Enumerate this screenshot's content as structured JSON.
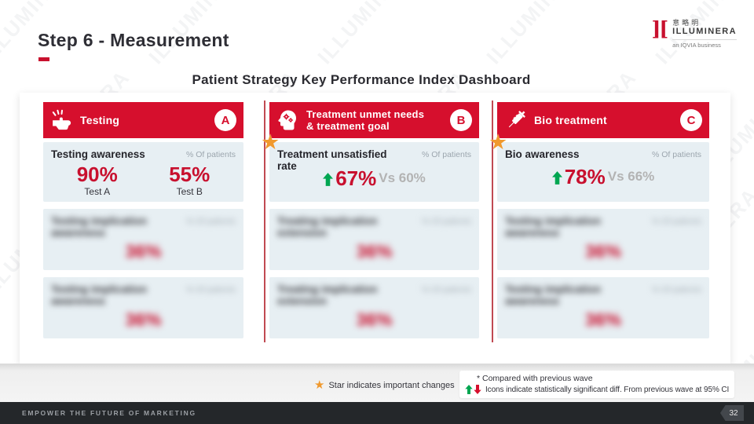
{
  "slide": {
    "title": "Step 6 - Measurement",
    "subtitle": "Patient Strategy Key Performance Index Dashboard",
    "watermark": "ILLUMINERA",
    "footer_tagline": "EMPOWER THE FUTURE OF MARKETING",
    "page_number": "32"
  },
  "logo": {
    "mark": "][",
    "cjk": "意略明",
    "name": "ILLUMINERA",
    "tagline": "an IQVIA business"
  },
  "colors": {
    "brand_red": "#D60F2D",
    "value_red": "#C8102E",
    "positive_green": "#00A651",
    "star_orange": "#F0992E",
    "card_bg": "#E7EFF3",
    "footer_bg": "#24272A"
  },
  "columns": [
    {
      "badge": "A",
      "icon": "hand-click-icon",
      "header_line1": "Testing",
      "header_line2": "",
      "starred": false,
      "kpi": {
        "title": "Testing awareness",
        "unit": "% Of patients",
        "values": [
          {
            "value": "90%",
            "label": "Test A"
          },
          {
            "value": "55%",
            "label": "Test B"
          }
        ]
      },
      "blurred_cards": [
        {
          "title_line1": "Testing implication",
          "title_line2": "awareness",
          "unit": "% Of patients",
          "value": "36%"
        },
        {
          "title_line1": "Testing implication",
          "title_line2": "awareness",
          "unit": "% Of patients",
          "value": "36%"
        }
      ]
    },
    {
      "badge": "B",
      "icon": "head-gears-icon",
      "header_line1": "Treatment unmet needs",
      "header_line2": "& treatment goal",
      "starred": true,
      "kpi": {
        "title": "Treatment unsatisfied rate",
        "unit": "% Of patients",
        "trend": {
          "direction": "up",
          "value": "67%",
          "vs": "Vs 60%"
        }
      },
      "blurred_cards": [
        {
          "title_line1": "Treating implication",
          "title_line2": "extension",
          "unit": "% Of patients",
          "value": "36%"
        },
        {
          "title_line1": "Treating implication",
          "title_line2": "extension",
          "unit": "% Of patients",
          "value": "36%"
        }
      ]
    },
    {
      "badge": "C",
      "icon": "syringe-icon",
      "header_line1": "Bio treatment",
      "header_line2": "",
      "starred": true,
      "kpi": {
        "title": "Bio awareness",
        "unit": "% Of patients",
        "trend": {
          "direction": "up",
          "value": "78%",
          "vs": "Vs 66%"
        }
      },
      "blurred_cards": [
        {
          "title_line1": "Testing implication",
          "title_line2": "awareness",
          "unit": "% Of patients",
          "value": "36%"
        },
        {
          "title_line1": "Testing implication",
          "title_line2": "awareness",
          "unit": "% Of patients",
          "value": "36%"
        }
      ]
    }
  ],
  "legend": {
    "star_note": "Star indicates important changes",
    "compared_note": "* Compared with previous wave",
    "icons_note": "Icons indicate statistically significant diff. From previous wave at 95% CI"
  }
}
